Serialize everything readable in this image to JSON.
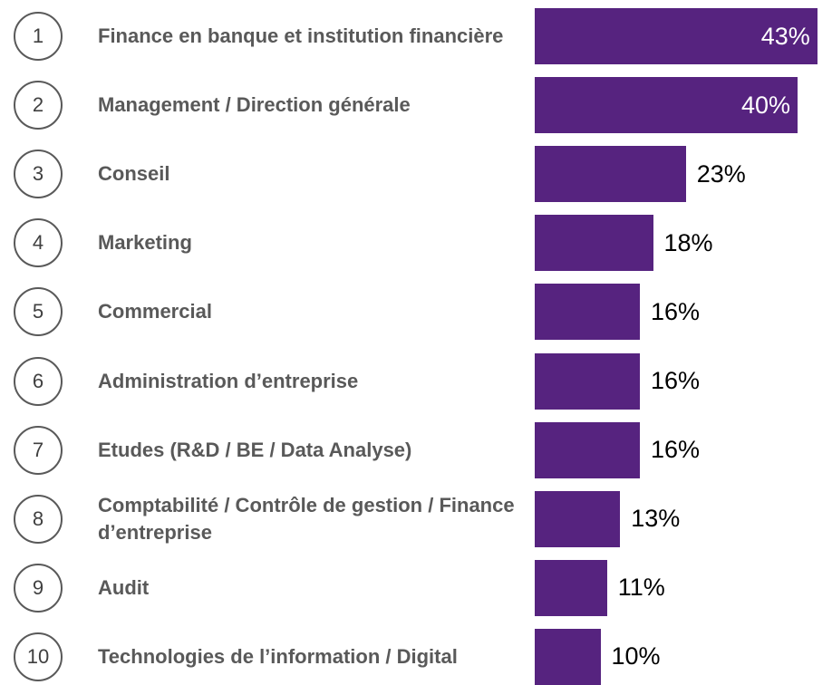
{
  "chart_data": {
    "type": "bar",
    "orientation": "horizontal",
    "color": "#56237f",
    "ranks": [
      1,
      2,
      3,
      4,
      5,
      6,
      7,
      8,
      9,
      10
    ],
    "categories": [
      "Finance en banque et institution financière",
      "Management / Direction générale",
      "Conseil",
      "Marketing",
      "Commercial",
      "Administration d’entreprise",
      "Etudes (R&D / BE / Data Analyse)",
      "Comptabilité / Contrôle de gestion / Finance d’entreprise",
      "Audit",
      "Technologies de l’information / Digital"
    ],
    "values": [
      43,
      40,
      23,
      18,
      16,
      16,
      16,
      13,
      11,
      10
    ],
    "value_labels": [
      "43%",
      "40%",
      "23%",
      "18%",
      "16%",
      "16%",
      "16%",
      "13%",
      "11%",
      "10%"
    ]
  }
}
